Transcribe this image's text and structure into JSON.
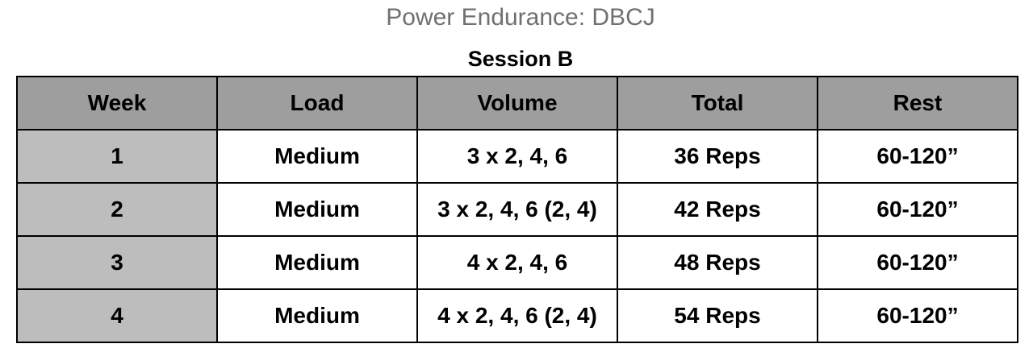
{
  "document": {
    "title": "Power Endurance: DBCJ",
    "subtitle": "Session B"
  },
  "table": {
    "headers": {
      "week": "Week",
      "load": "Load",
      "volume": "Volume",
      "total": "Total",
      "rest": "Rest"
    },
    "rows": [
      {
        "week": "1",
        "load": "Medium",
        "volume": "3 x 2, 4, 6",
        "total": "36 Reps",
        "rest": "60-120”"
      },
      {
        "week": "2",
        "load": "Medium",
        "volume": "3 x 2, 4, 6 (2, 4)",
        "total": "42 Reps",
        "rest": "60-120”"
      },
      {
        "week": "3",
        "load": "Medium",
        "volume": "4 x 2, 4, 6",
        "total": "48 Reps",
        "rest": "60-120”"
      },
      {
        "week": "4",
        "load": "Medium",
        "volume": "4 x 2, 4, 6 (2, 4)",
        "total": "54 Reps",
        "rest": "60-120”"
      }
    ]
  },
  "colors": {
    "header_background": "#9e9e9e",
    "week_column_background": "#bdbdbd",
    "title_text": "#707070"
  }
}
